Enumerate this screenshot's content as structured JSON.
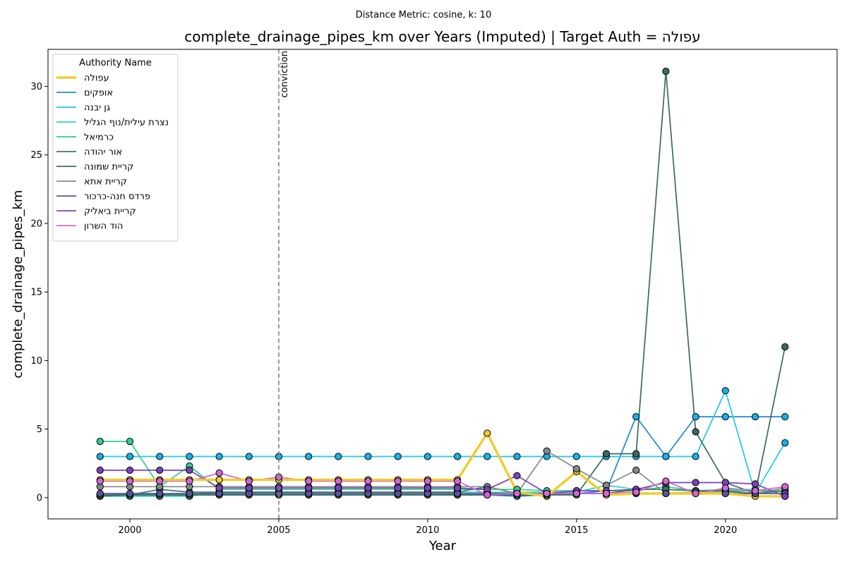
{
  "figure": {
    "suptitle": "Distance Metric: cosine, k: 10",
    "title": "complete_drainage_pipes_km over Years (Imputed) | Target Auth = עפולה"
  },
  "chart_data": {
    "type": "line",
    "title": "complete_drainage_pipes_km over Years (Imputed) | Target Auth = עפולה",
    "xlabel": "Year",
    "ylabel": "complete_drainage_pipes_km",
    "xlim": [
      1997.25,
      2023.75
    ],
    "ylim": [
      -1.55,
      32.7
    ],
    "x_ticks": [
      2000,
      2005,
      2010,
      2015,
      2020
    ],
    "y_ticks": [
      0,
      5,
      10,
      15,
      20,
      25,
      30
    ],
    "grid": false,
    "legend": {
      "title": "Authority Name",
      "placement": "top-left"
    },
    "annotations": [
      {
        "type": "vline",
        "x": 2005,
        "label": "conviction",
        "style": "dashed",
        "color": "#808080"
      }
    ],
    "marker_colors": {
      "observed_points": "#1ab0e8"
    },
    "x": [
      1999,
      2000,
      2001,
      2002,
      2003,
      2004,
      2005,
      2006,
      2007,
      2008,
      2009,
      2010,
      2011,
      2012,
      2013,
      2014,
      2015,
      2016,
      2017,
      2018,
      2019,
      2020,
      2021,
      2022
    ],
    "series": [
      {
        "name": "עפולה",
        "color": "#f2cc2b",
        "width": 3.4,
        "target": true,
        "values": [
          1.3,
          1.3,
          1.3,
          1.3,
          1.3,
          1.3,
          1.3,
          1.3,
          1.3,
          1.3,
          1.3,
          1.3,
          1.3,
          4.7,
          0.4,
          0.1,
          1.9,
          0.2,
          0.3,
          0.3,
          0.3,
          0.3,
          0.1,
          0.1
        ]
      },
      {
        "name": "אופקים",
        "color": "#1f88d8",
        "width": 1.7,
        "values": [
          0.2,
          0.2,
          0.2,
          0.2,
          0.2,
          0.2,
          0.2,
          0.2,
          0.2,
          0.2,
          0.2,
          0.2,
          0.2,
          0.2,
          0.1,
          0.2,
          0.3,
          0.5,
          5.9,
          3.0,
          5.9,
          5.9,
          5.9,
          5.9
        ]
      },
      {
        "name": "גן יבנה",
        "color": "#1ec6ee",
        "width": 1.7,
        "values": [
          3.0,
          3.0,
          3.0,
          3.0,
          3.0,
          3.0,
          3.0,
          3.0,
          3.0,
          3.0,
          3.0,
          3.0,
          3.0,
          3.0,
          3.0,
          3.0,
          3.0,
          3.0,
          3.0,
          3.0,
          3.0,
          7.8,
          0.3,
          4.0
        ]
      },
      {
        "name": "נצרת עילית/נוף הגליל",
        "color": "#2ad9b9",
        "width": 1.7,
        "values": [
          0.1,
          0.1,
          0.1,
          0.1,
          0.4,
          0.4,
          0.4,
          0.4,
          0.4,
          0.4,
          0.4,
          0.4,
          0.4,
          0.4,
          0.4,
          0.4,
          0.4,
          0.9,
          0.6,
          0.6,
          0.5,
          0.6,
          0.6,
          0.4
        ]
      },
      {
        "name": "כרמיאל",
        "color": "#33cc8c",
        "width": 1.7,
        "values": [
          4.1,
          4.1,
          0.8,
          2.3,
          0.6,
          0.6,
          0.6,
          0.6,
          0.6,
          0.6,
          0.6,
          0.6,
          0.6,
          0.6,
          0.6,
          0.5,
          0.5,
          0.5,
          0.5,
          0.8,
          0.5,
          0.5,
          0.5,
          0.5
        ]
      },
      {
        "name": "אור יהודה",
        "color": "#3f7a5e",
        "width": 1.7,
        "values": [
          0.1,
          0.2,
          0.6,
          0.4,
          0.4,
          0.4,
          0.4,
          0.4,
          0.4,
          0.4,
          0.4,
          0.4,
          0.4,
          0.8,
          0.3,
          0.3,
          0.3,
          0.3,
          0.6,
          0.6,
          0.5,
          0.5,
          0.3,
          0.5
        ]
      },
      {
        "name": "קריית שמונה",
        "color": "#3a6b5b",
        "width": 1.7,
        "values": [
          0.2,
          0.2,
          0.2,
          0.2,
          0.2,
          0.2,
          0.2,
          0.2,
          0.2,
          0.2,
          0.2,
          0.2,
          0.2,
          0.2,
          0.2,
          0.2,
          0.2,
          3.2,
          3.2,
          31.1,
          4.8,
          1.1,
          0.3,
          11.0
        ]
      },
      {
        "name": "קריית אתא",
        "color": "#808b88",
        "width": 1.7,
        "values": [
          0.8,
          0.8,
          0.8,
          0.8,
          0.8,
          0.8,
          0.8,
          0.8,
          0.8,
          0.8,
          0.8,
          0.8,
          0.8,
          0.8,
          0.3,
          3.4,
          2.1,
          0.9,
          2.0,
          0.3,
          0.4,
          0.4,
          0.3,
          0.7
        ]
      },
      {
        "name": "פרדס חנה-כרכור",
        "color": "#5555a0",
        "width": 1.7,
        "values": [
          0.3,
          0.3,
          0.3,
          0.3,
          0.3,
          0.3,
          0.3,
          0.3,
          0.3,
          0.3,
          0.3,
          0.3,
          0.3,
          0.3,
          0.3,
          0.3,
          0.3,
          0.3,
          0.3,
          0.3,
          0.3,
          0.3,
          0.3,
          0.3
        ]
      },
      {
        "name": "קריית ביאליק",
        "color": "#7b42b8",
        "width": 1.7,
        "values": [
          2.0,
          2.0,
          2.0,
          2.0,
          0.7,
          0.7,
          0.7,
          0.7,
          0.7,
          0.7,
          0.7,
          0.7,
          0.7,
          0.6,
          1.6,
          0.3,
          0.5,
          0.5,
          0.6,
          1.1,
          1.1,
          1.1,
          1.0,
          0.1
        ]
      },
      {
        "name": "הוד השרון",
        "color": "#d066d6",
        "width": 1.7,
        "values": [
          1.2,
          1.2,
          1.2,
          1.2,
          1.8,
          1.2,
          1.5,
          1.2,
          1.2,
          1.2,
          1.2,
          1.2,
          1.2,
          0.2,
          0.3,
          0.3,
          0.3,
          0.3,
          0.4,
          1.2,
          0.3,
          0.7,
          0.5,
          0.8
        ]
      }
    ]
  }
}
